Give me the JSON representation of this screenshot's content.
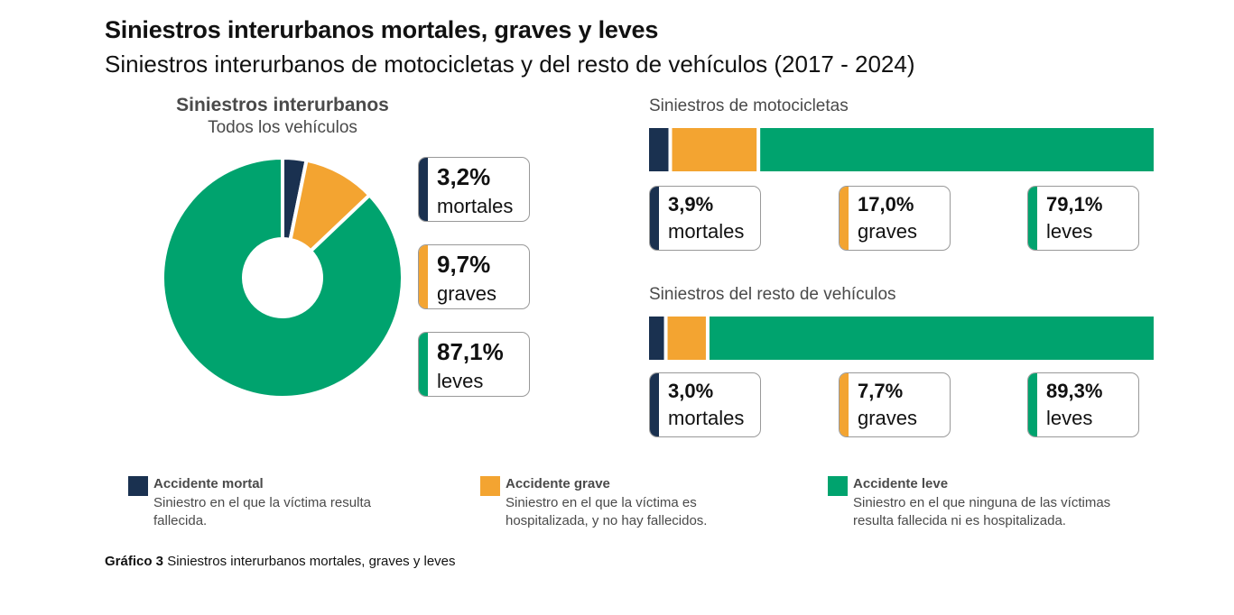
{
  "title": "Siniestros interurbanos mortales, graves y leves",
  "subtitle": "Siniestros interurbanos de motocicletas y del resto de vehículos (2017 - 2024)",
  "colors": {
    "mortal": "#1a3150",
    "grave": "#f3a431",
    "leve": "#00a36e"
  },
  "donut": {
    "title": "Siniestros interurbanos",
    "subtitle": "Todos los vehículos",
    "cards": [
      {
        "pct": "3,2%",
        "label": "mortales"
      },
      {
        "pct": "9,7%",
        "label": "graves"
      },
      {
        "pct": "87,1%",
        "label": "leves"
      }
    ]
  },
  "motos": {
    "title": "Siniestros de motocicletas",
    "cards": [
      {
        "pct": "3,9%",
        "label": "mortales"
      },
      {
        "pct": "17,0%",
        "label": "graves"
      },
      {
        "pct": "79,1%",
        "label": "leves"
      }
    ]
  },
  "resto": {
    "title": "Siniestros del resto de vehículos",
    "cards": [
      {
        "pct": "3,0%",
        "label": "mortales"
      },
      {
        "pct": "7,7%",
        "label": "graves"
      },
      {
        "pct": "89,3%",
        "label": "leves"
      }
    ]
  },
  "legend": [
    {
      "heading": "Accidente mortal",
      "text": "Siniestro en el que la víctima resulta fallecida."
    },
    {
      "heading": "Accidente grave",
      "text": "Siniestro en el que la víctima es hospitalizada, y no hay fallecidos."
    },
    {
      "heading": "Accidente leve",
      "text": "Siniestro en el que ninguna de las víctimas resulta fallecida ni es hospitalizada."
    }
  ],
  "caption": {
    "label": "Gráfico 3",
    "text": "Siniestros interurbanos mortales, graves y leves"
  },
  "chart_data": [
    {
      "type": "pie",
      "title": "Siniestros interurbanos",
      "subtitle": "Todos los vehículos",
      "categories": [
        "mortales",
        "graves",
        "leves"
      ],
      "values": [
        3.2,
        9.7,
        87.1
      ]
    },
    {
      "type": "bar",
      "title": "Siniestros de motocicletas",
      "categories": [
        "mortales",
        "graves",
        "leves"
      ],
      "values": [
        3.9,
        17.0,
        79.1
      ]
    },
    {
      "type": "bar",
      "title": "Siniestros del resto de vehículos",
      "categories": [
        "mortales",
        "graves",
        "leves"
      ],
      "values": [
        3.0,
        7.7,
        89.3
      ]
    }
  ]
}
